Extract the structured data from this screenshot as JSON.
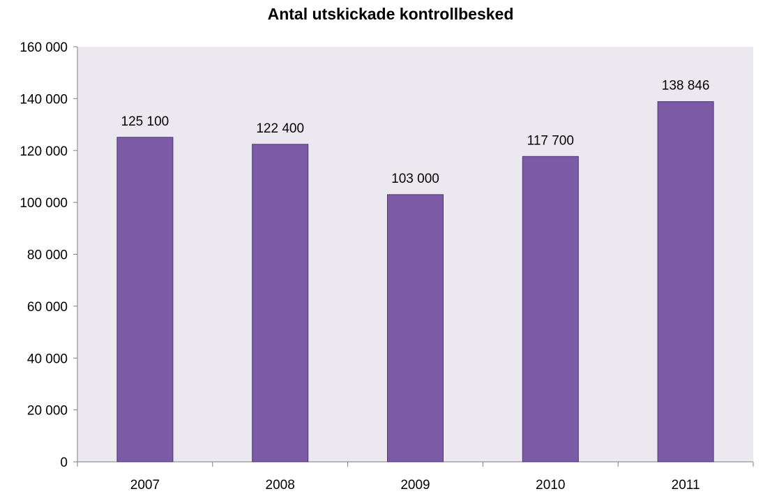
{
  "chart_data": {
    "type": "bar",
    "title": "Antal utskickade kontrollbesked",
    "xlabel": "",
    "ylabel": "",
    "categories": [
      "2007",
      "2008",
      "2009",
      "2010",
      "2011"
    ],
    "values": [
      125100,
      122400,
      103000,
      117700,
      138846
    ],
    "data_labels": [
      "125 100",
      "122 400",
      "103 000",
      "117 700",
      "138 846"
    ],
    "ylim": [
      0,
      160000
    ],
    "yticks": [
      0,
      20000,
      40000,
      60000,
      80000,
      100000,
      120000,
      140000,
      160000
    ],
    "ytick_labels": [
      "0",
      "20 000",
      "40 000",
      "60 000",
      "80 000",
      "100 000",
      "120 000",
      "140 000",
      "160 000"
    ],
    "grid": false,
    "legend": "none",
    "colors": {
      "bar_fill": "#7b5ba6",
      "bar_stroke": "#4f3478",
      "plot_background": "#ebe8f0",
      "axis": "#7f7f7f",
      "text": "#000000"
    }
  }
}
